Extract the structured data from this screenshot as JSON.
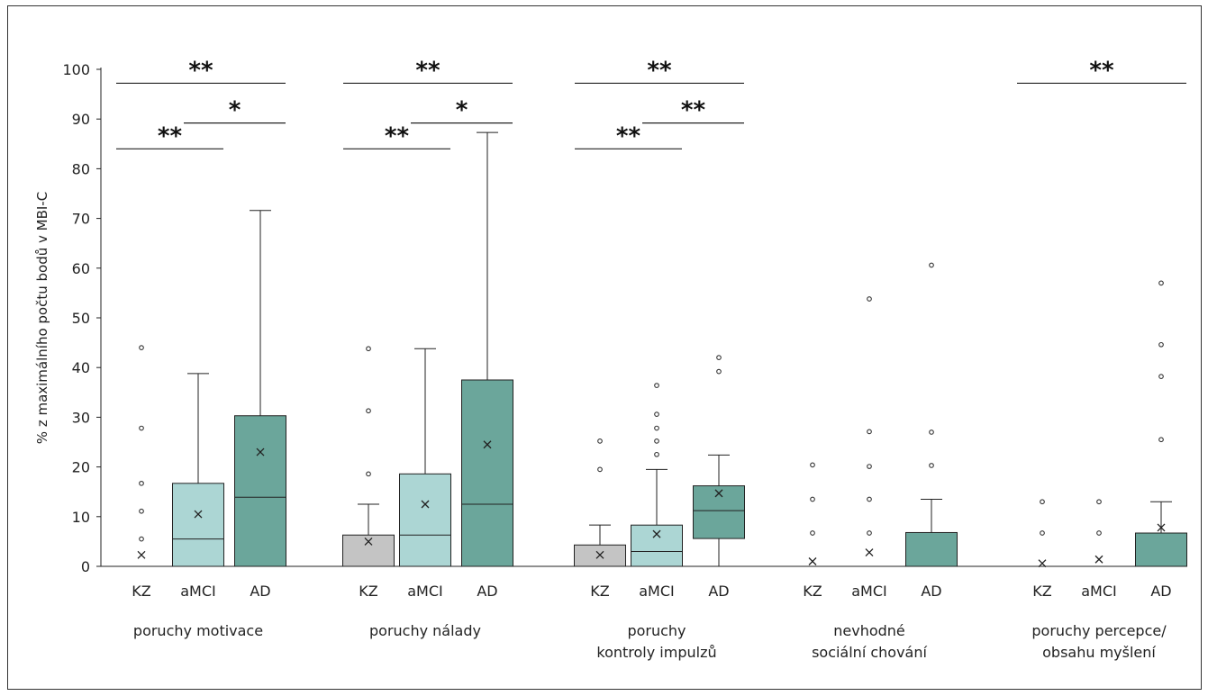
{
  "chart_data": {
    "type": "boxplot",
    "ylabel": "% z maximálního počtu bodů v MBI-C",
    "ylim": [
      0,
      100
    ],
    "yticks": [
      0,
      10,
      20,
      30,
      40,
      50,
      60,
      70,
      80,
      90,
      100
    ],
    "subgroup_labels": [
      "KZ",
      "aMCI",
      "AD"
    ],
    "colors": {
      "KZ": "#c4c4c4",
      "aMCI": "#acd6d4",
      "AD": "#6ba69b"
    },
    "groups": [
      {
        "label": [
          "poruchy motivace"
        ],
        "boxes": [
          {
            "sub": "KZ",
            "q1": 0,
            "median": 0,
            "q3": 0,
            "wmin": 0,
            "wmax": 0,
            "mean": 2.3,
            "outliers": [
              5.5,
              11.1,
              16.7,
              27.8,
              44.0
            ]
          },
          {
            "sub": "aMCI",
            "q1": 0,
            "median": 5.5,
            "q3": 16.7,
            "wmin": 0,
            "wmax": 38.8,
            "mean": 10.5,
            "outliers": []
          },
          {
            "sub": "AD",
            "q1": 0,
            "median": 13.9,
            "q3": 30.3,
            "wmin": 0,
            "wmax": 71.6,
            "mean": 23.0,
            "outliers": []
          }
        ],
        "sig": [
          {
            "from": 0,
            "to": 1,
            "level": 84.0,
            "text": "**"
          },
          {
            "from": 1,
            "to": 2,
            "level": 89.2,
            "text": "*"
          },
          {
            "from": 0,
            "to": 2,
            "level": 97.2,
            "text": "**"
          }
        ]
      },
      {
        "label": [
          "poruchy nálady"
        ],
        "boxes": [
          {
            "sub": "KZ",
            "q1": 0,
            "median": 0,
            "q3": 6.3,
            "wmin": 0,
            "wmax": 12.5,
            "mean": 5.0,
            "outliers": [
              18.6,
              31.3,
              43.8
            ]
          },
          {
            "sub": "aMCI",
            "q1": 0,
            "median": 6.3,
            "q3": 18.6,
            "wmin": 0,
            "wmax": 43.8,
            "mean": 12.5,
            "outliers": []
          },
          {
            "sub": "AD",
            "q1": 0,
            "median": 12.5,
            "q3": 37.5,
            "wmin": 0,
            "wmax": 87.3,
            "mean": 24.5,
            "outliers": []
          }
        ],
        "sig": [
          {
            "from": 0,
            "to": 1,
            "level": 84.0,
            "text": "**"
          },
          {
            "from": 1,
            "to": 2,
            "level": 89.2,
            "text": "*"
          },
          {
            "from": 0,
            "to": 2,
            "level": 97.2,
            "text": "**"
          }
        ]
      },
      {
        "label": [
          "poruchy",
          "kontroly impulzů"
        ],
        "boxes": [
          {
            "sub": "KZ",
            "q1": 0,
            "median": 0,
            "q3": 4.3,
            "wmin": 0,
            "wmax": 8.3,
            "mean": 2.3,
            "outliers": [
              19.5,
              25.2
            ]
          },
          {
            "sub": "aMCI",
            "q1": 0,
            "median": 3.0,
            "q3": 8.3,
            "wmin": 0,
            "wmax": 19.5,
            "mean": 6.5,
            "outliers": [
              22.5,
              25.2,
              27.8,
              30.6,
              36.4
            ]
          },
          {
            "sub": "AD",
            "q1": 5.6,
            "median": 11.2,
            "q3": 16.2,
            "wmin": 0,
            "wmax": 22.4,
            "mean": 14.7,
            "outliers": [
              39.2,
              42.0
            ]
          }
        ],
        "sig": [
          {
            "from": 0,
            "to": 1,
            "level": 84.0,
            "text": "**"
          },
          {
            "from": 1,
            "to": 2,
            "level": 89.2,
            "text": "**"
          },
          {
            "from": 0,
            "to": 2,
            "level": 97.2,
            "text": "**"
          }
        ]
      },
      {
        "label": [
          "nevhodné",
          "sociální chování"
        ],
        "boxes": [
          {
            "sub": "KZ",
            "q1": 0,
            "median": 0,
            "q3": 0,
            "wmin": 0,
            "wmax": 0,
            "mean": 1.0,
            "outliers": [
              6.7,
              13.5,
              20.4
            ]
          },
          {
            "sub": "aMCI",
            "q1": 0,
            "median": 0,
            "q3": 0,
            "wmin": 0,
            "wmax": 0,
            "mean": 2.8,
            "outliers": [
              6.7,
              13.5,
              20.1,
              27.1,
              53.8
            ]
          },
          {
            "sub": "AD",
            "q1": 0,
            "median": 0,
            "q3": 6.8,
            "wmin": 0,
            "wmax": 13.5,
            "mean": null,
            "outliers": [
              20.3,
              27.0,
              60.6
            ]
          }
        ],
        "sig": []
      },
      {
        "label": [
          "poruchy percepce/",
          "obsahu myšlení"
        ],
        "boxes": [
          {
            "sub": "KZ",
            "q1": 0,
            "median": 0,
            "q3": 0,
            "wmin": 0,
            "wmax": 0,
            "mean": 0.6,
            "outliers": [
              6.7,
              13.0
            ]
          },
          {
            "sub": "aMCI",
            "q1": 0,
            "median": 0,
            "q3": 0,
            "wmin": 0,
            "wmax": 0,
            "mean": 1.4,
            "outliers": [
              6.7,
              13.0
            ]
          },
          {
            "sub": "AD",
            "q1": 0,
            "median": 0,
            "q3": 6.7,
            "wmin": 0,
            "wmax": 13.0,
            "mean": 7.8,
            "outliers": [
              25.5,
              38.2,
              44.6,
              57.0
            ]
          }
        ],
        "sig": [
          {
            "from": 0,
            "to": 2,
            "level": 97.2,
            "text": "**"
          }
        ]
      }
    ]
  }
}
